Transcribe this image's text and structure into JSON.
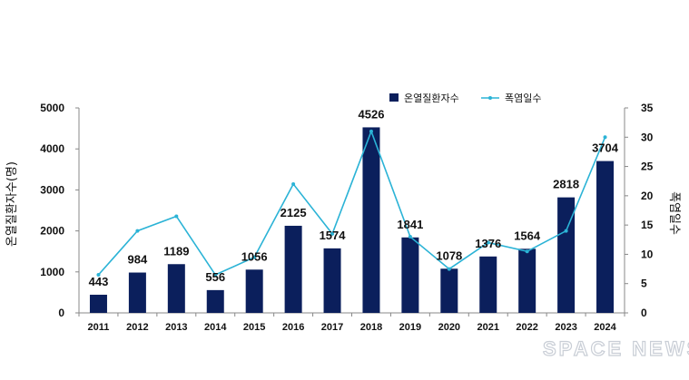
{
  "chart_data": {
    "type": "bar+line",
    "categories": [
      "2011",
      "2012",
      "2013",
      "2014",
      "2015",
      "2016",
      "2017",
      "2018",
      "2019",
      "2020",
      "2021",
      "2022",
      "2023",
      "2024"
    ],
    "series": [
      {
        "name": "온열질환자수",
        "kind": "bar",
        "axis": "left",
        "color": "#0b1f5c",
        "values": [
          443,
          984,
          1189,
          556,
          1056,
          2125,
          1574,
          4526,
          1841,
          1078,
          1376,
          1564,
          2818,
          3704
        ]
      },
      {
        "name": "폭염일수",
        "kind": "line",
        "axis": "right",
        "color": "#2bb3d6",
        "values": [
          6.5,
          14,
          16.5,
          6.5,
          9.5,
          22,
          13.5,
          31,
          13,
          7.5,
          12,
          10.5,
          14,
          30
        ]
      }
    ],
    "ylabel": "온열질환자수(명)",
    "y2label": "폭염일수",
    "ylim": [
      0,
      5000
    ],
    "y2lim": [
      0,
      35
    ],
    "yticks": [
      0,
      1000,
      2000,
      3000,
      4000,
      5000
    ],
    "y2ticks": [
      0,
      5,
      10,
      15,
      20,
      25,
      30,
      35
    ],
    "legend": "top-center",
    "grid": false
  },
  "watermark": "SPACE NEWS"
}
